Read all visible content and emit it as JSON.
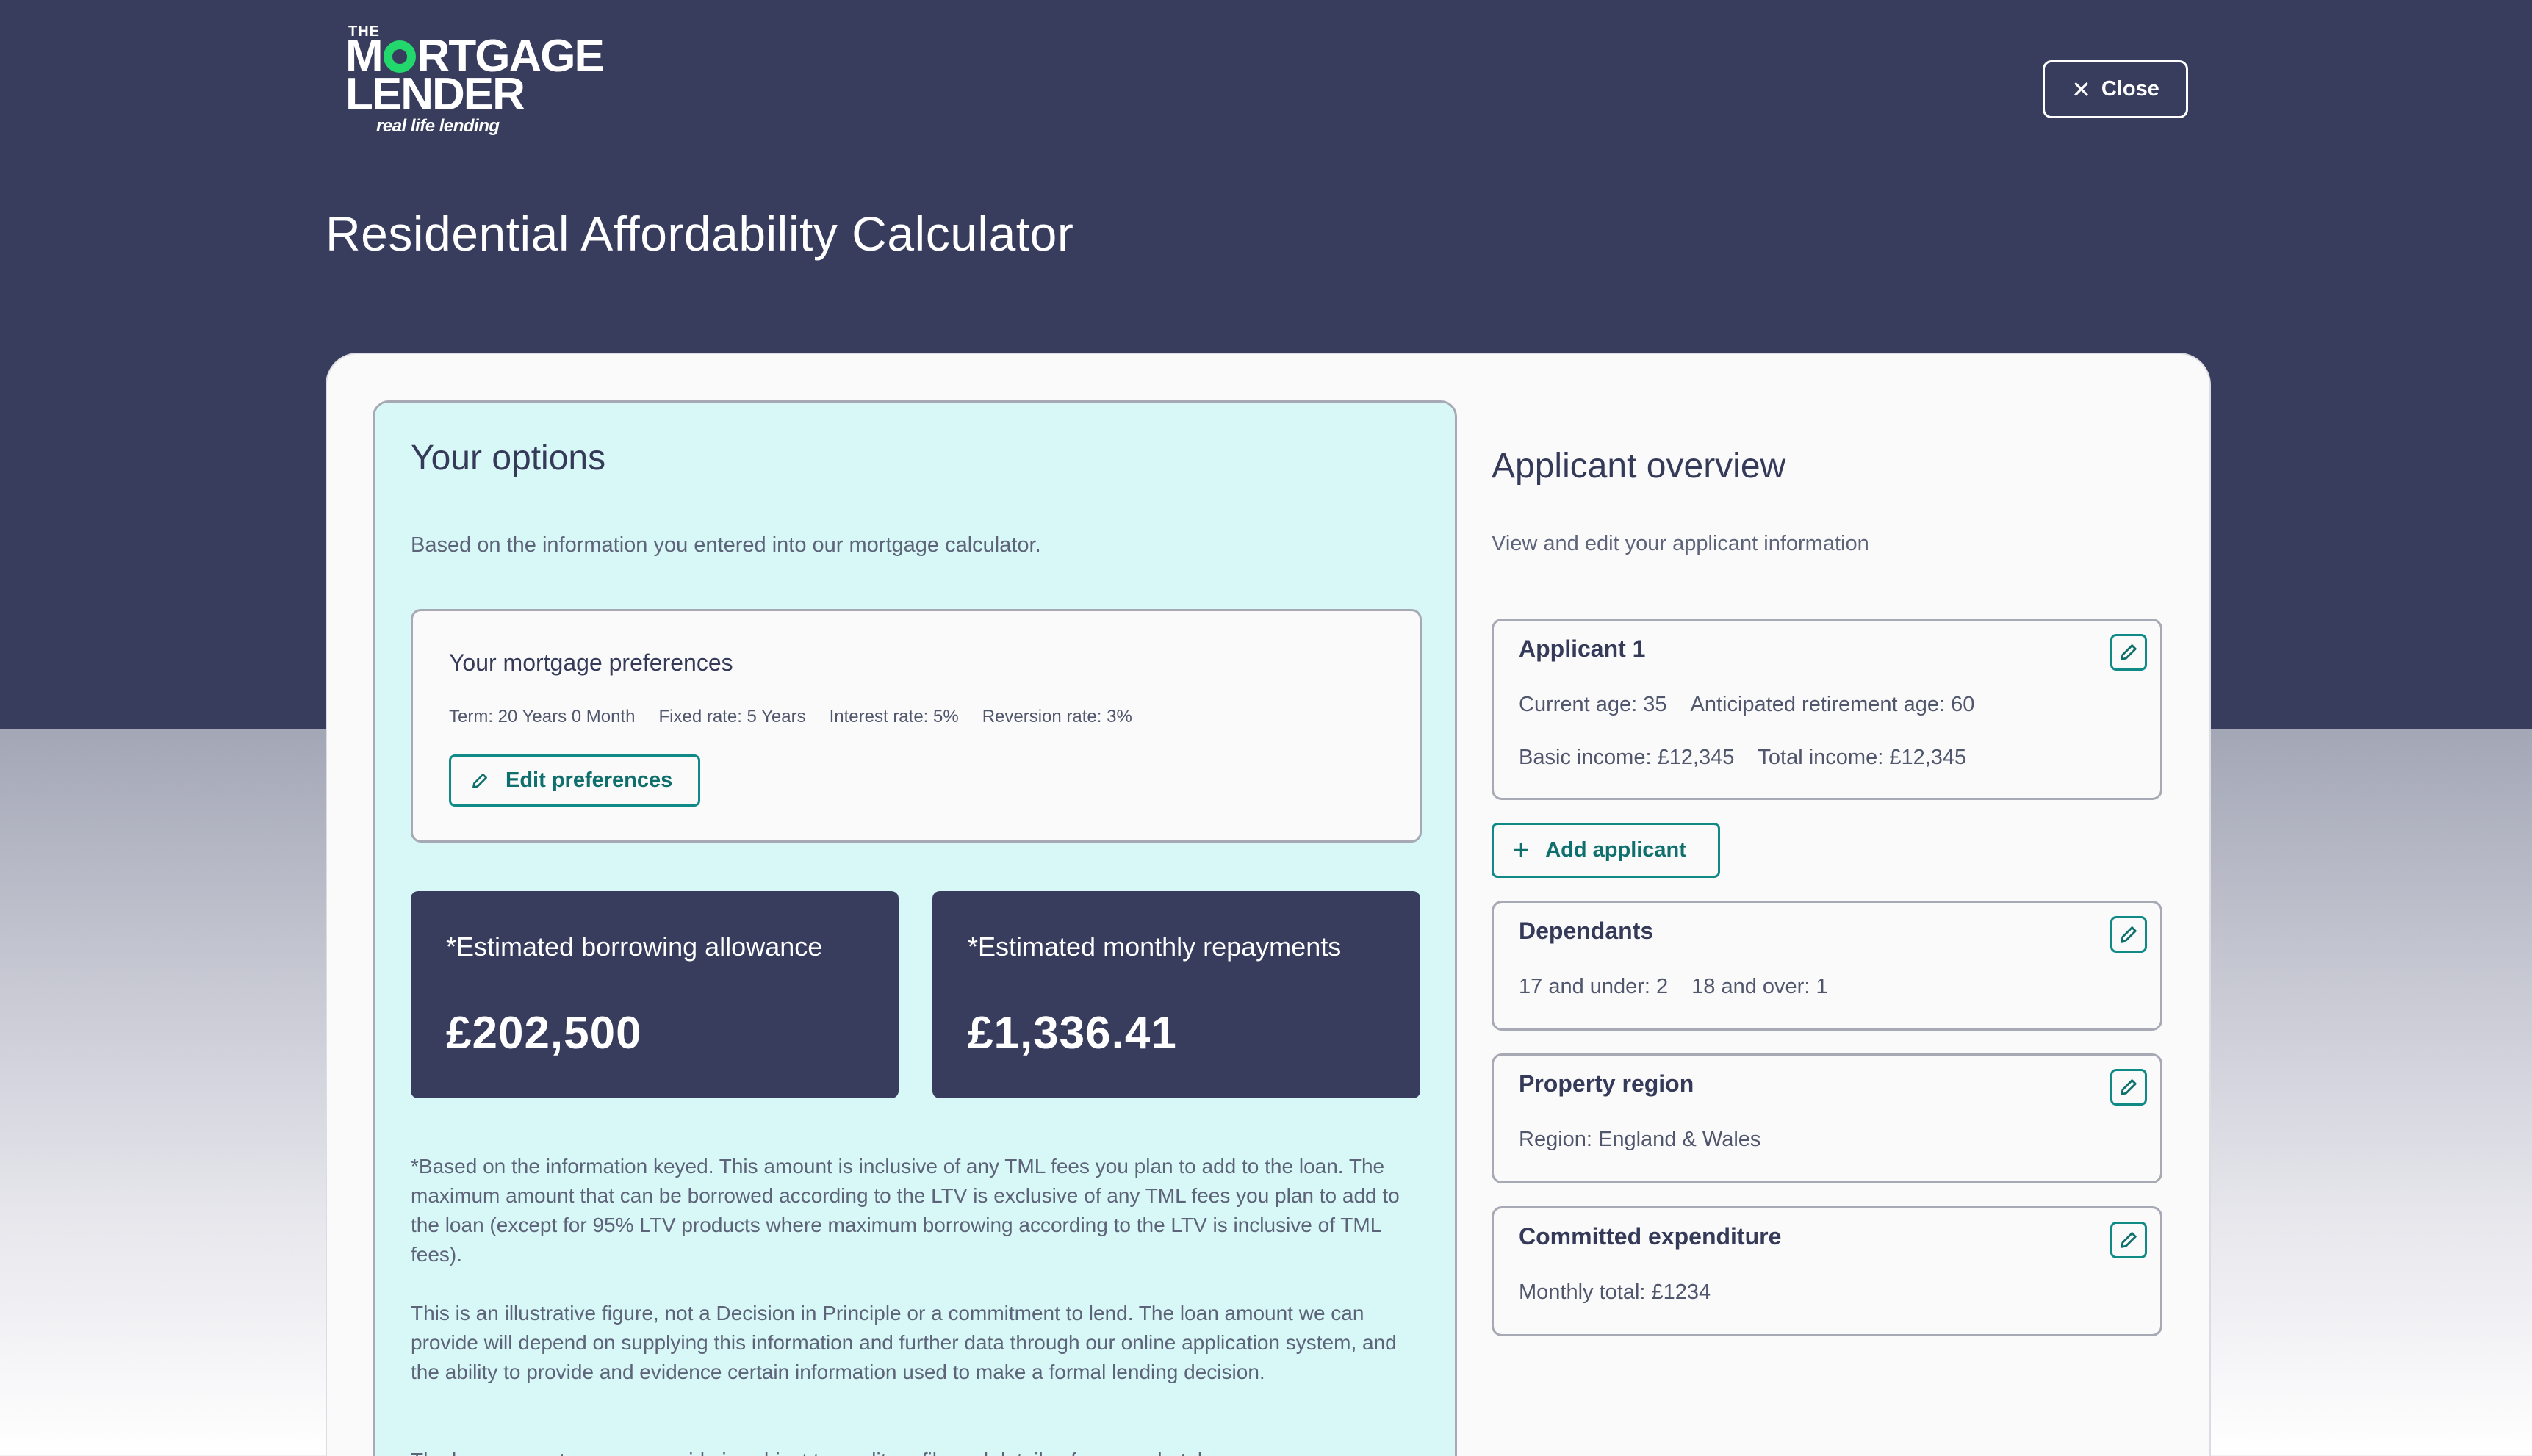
{
  "header": {
    "logo": {
      "line_the": "THE",
      "line_1a": "M",
      "line_1b": "RTGAGE",
      "line_2": "LENDER",
      "tagline": "real life lending"
    },
    "close_label": "Close",
    "title": "Residential Affordability Calculator"
  },
  "options": {
    "heading": "Your options",
    "subtitle": "Based on the information you entered into our mortgage calculator.",
    "preferences": {
      "heading": "Your mortgage preferences",
      "term": "Term: 20 Years 0 Month",
      "fixed_rate": "Fixed rate: 5 Years",
      "interest_rate": "Interest rate: 5%",
      "reversion_rate": "Reversion rate: 3%",
      "edit_label": "Edit preferences"
    },
    "borrowing": {
      "label": "*Estimated borrowing allowance",
      "value": "£202,500"
    },
    "repayments": {
      "label": "*Estimated monthly repayments",
      "value": "£1,336.41"
    },
    "disclaimer_1": "*Based on the information keyed. This amount is inclusive of any TML fees you plan to add to the loan. The maximum amount that can be borrowed according to the LTV is exclusive of any TML fees you plan to add to the loan (except for 95% LTV products where maximum borrowing according to the LTV is inclusive of TML fees).",
    "disclaimer_2": "This is an illustrative figure, not a Decision in Principle or a commitment to lend. The loan amount we can provide will depend on supplying this information and further data through our online application system, and the ability to provide and evidence certain information used to make a formal lending decision.",
    "disclaimer_3": "The loan amount you can provide is subject to credit profile and details of your undertaken"
  },
  "overview": {
    "heading": "Applicant overview",
    "subtitle": "View and edit your applicant information",
    "applicant1": {
      "title": "Applicant 1",
      "current_age": "Current age: 35",
      "retirement_age": "Anticipated retirement age: 60",
      "basic_income": "Basic income: £12,345",
      "total_income": "Total income: £12,345"
    },
    "add_applicant_label": "Add applicant",
    "dependants": {
      "title": "Dependants",
      "under_17": "17 and under: 2",
      "over_18": "18 and over: 1"
    },
    "property": {
      "title": "Property region",
      "region": "Region: England & Wales"
    },
    "expenditure": {
      "title": "Committed expenditure",
      "monthly_total": "Monthly total: £1234"
    }
  },
  "colors": {
    "navy": "#383d5e",
    "teal": "#0f8a86",
    "options_bg": "#d7f8f7",
    "logo_ring": "#22d86d"
  }
}
